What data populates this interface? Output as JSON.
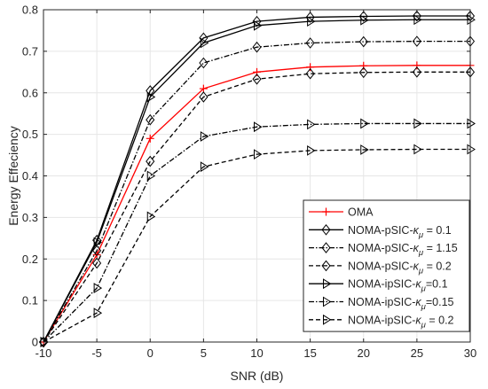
{
  "chart_data": {
    "type": "line",
    "title": "",
    "xlabel": "SNR (dB)",
    "ylabel": "Energy Effeciency",
    "xlim": [
      -10,
      30
    ],
    "ylim": [
      0,
      0.8
    ],
    "x_ticks": [
      "-10",
      "-5",
      "0",
      "5",
      "10",
      "15",
      "20",
      "25",
      "30"
    ],
    "y_ticks": [
      "0",
      "0.1",
      "0.2",
      "0.3",
      "0.4",
      "0.5",
      "0.6",
      "0.7",
      "0.8"
    ],
    "grid": true,
    "legend_position": "bottom-right",
    "x": [
      -10,
      -5,
      0,
      5,
      10,
      15,
      20,
      25,
      30
    ],
    "series": [
      {
        "name": "OMA",
        "color": "#ff0000",
        "line": "solid",
        "marker": "plus",
        "values": [
          0.0,
          0.21,
          0.49,
          0.61,
          0.65,
          0.662,
          0.665,
          0.666,
          0.666
        ]
      },
      {
        "name_parts": [
          "NOMA-pSIC-",
          "κ",
          "μ",
          " = 0.1"
        ],
        "color": "#000000",
        "line": "solid",
        "marker": "diamond",
        "values": [
          0.0,
          0.245,
          0.605,
          0.732,
          0.772,
          0.782,
          0.784,
          0.785,
          0.785
        ]
      },
      {
        "name_parts": [
          "NOMA-pSIC-",
          "κ",
          "μ",
          " = 1.15"
        ],
        "color": "#000000",
        "line": "dashdot",
        "marker": "diamond",
        "values": [
          0.0,
          0.22,
          0.535,
          0.672,
          0.71,
          0.72,
          0.723,
          0.724,
          0.724
        ]
      },
      {
        "name_parts": [
          "NOMA-pSIC-",
          "κ",
          "μ",
          " = 0.2"
        ],
        "color": "#000000",
        "line": "dashed",
        "marker": "diamond",
        "values": [
          0.0,
          0.19,
          0.435,
          0.59,
          0.633,
          0.646,
          0.649,
          0.65,
          0.65
        ]
      },
      {
        "name_parts": [
          "NOMA-ipSIC-",
          "κ",
          "μ",
          "=0.1"
        ],
        "color": "#000000",
        "line": "solid",
        "marker": "triangle-right",
        "values": [
          0.0,
          0.24,
          0.59,
          0.72,
          0.762,
          0.772,
          0.775,
          0.776,
          0.776
        ]
      },
      {
        "name_parts": [
          "NOMA-ipSIC-",
          "κ",
          "μ",
          "=0.15"
        ],
        "color": "#000000",
        "line": "dashdot",
        "marker": "triangle-right",
        "values": [
          0.0,
          0.13,
          0.4,
          0.495,
          0.518,
          0.524,
          0.526,
          0.526,
          0.526
        ]
      },
      {
        "name_parts": [
          "NOMA-ipSIC-",
          "κ",
          "μ",
          " = 0.2"
        ],
        "color": "#000000",
        "line": "dashed",
        "marker": "triangle-right",
        "values": [
          0.0,
          0.07,
          0.302,
          0.422,
          0.452,
          0.461,
          0.463,
          0.464,
          0.464
        ]
      }
    ]
  }
}
